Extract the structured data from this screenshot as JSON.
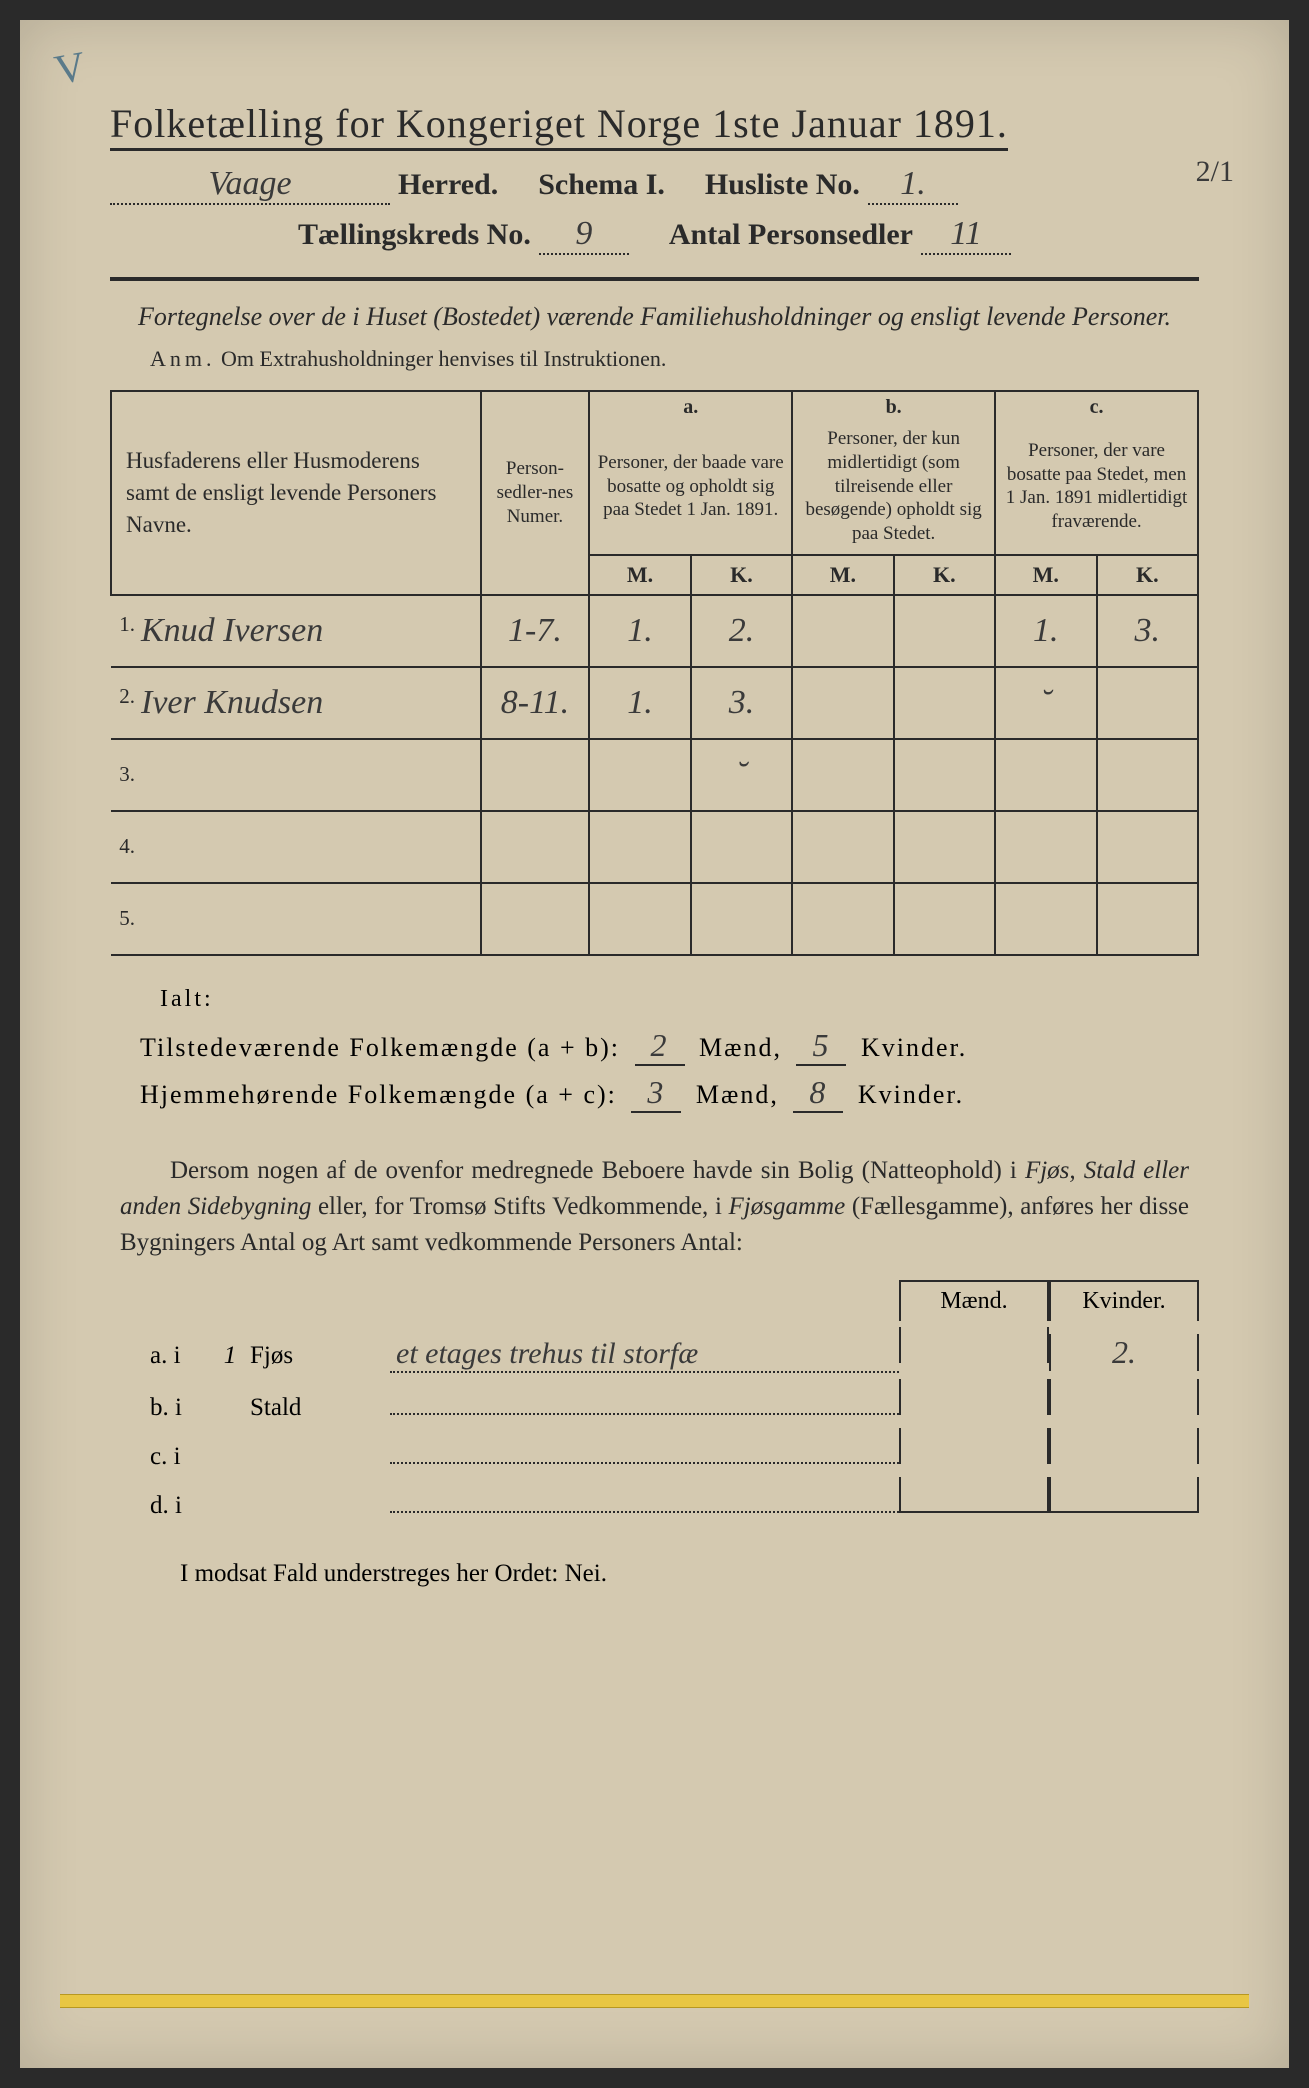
{
  "corner_mark": "V",
  "right_annotation": "2/1",
  "title": {
    "prefix": "Folketælling for Kongeriget Norge 1ste Januar",
    "year": "1891."
  },
  "line2": {
    "herred_value": "Vaage",
    "herred_label": "Herred.",
    "schema_label": "Schema I.",
    "husliste_label": "Husliste No.",
    "husliste_value": "1."
  },
  "line3": {
    "kreds_label": "Tællingskreds No.",
    "kreds_value": "9",
    "antal_label": "Antal Personsedler",
    "antal_value": "11"
  },
  "intro": "Fortegnelse over de i Huset (Bostedet) værende Familiehusholdninger og ensligt levende Personer.",
  "anm_label": "Anm.",
  "anm_text": "Om Extrahusholdninger henvises til Instruktionen.",
  "table": {
    "names_header": "Husfaderens eller Husmoderens samt de ensligt levende Personers Navne.",
    "numer_header": "Person-sedler-nes Numer.",
    "col_a_letter": "a.",
    "col_a_text": "Personer, der baade vare bosatte og opholdt sig paa Stedet 1 Jan. 1891.",
    "col_b_letter": "b.",
    "col_b_text": "Personer, der kun midlertidigt (som tilreisende eller besøgende) opholdt sig paa Stedet.",
    "col_c_letter": "c.",
    "col_c_text": "Personer, der vare bosatte paa Stedet, men 1 Jan. 1891 midlertidigt fraværende.",
    "mk_m": "M.",
    "mk_k": "K.",
    "rows": [
      {
        "n": "1.",
        "name": "Knud Iversen",
        "numer": "1-7.",
        "am": "1.",
        "ak": "2.",
        "bm": "",
        "bk": "",
        "cm": "1.",
        "ck": "3."
      },
      {
        "n": "2.",
        "name": "Iver Knudsen",
        "numer": "8-11.",
        "am": "1.",
        "ak": "3.",
        "bm": "",
        "bk": "",
        "cm": "˘",
        "ck": ""
      },
      {
        "n": "3.",
        "name": "",
        "numer": "",
        "am": "",
        "ak": "˘",
        "bm": "",
        "bk": "",
        "cm": "",
        "ck": ""
      },
      {
        "n": "4.",
        "name": "",
        "numer": "",
        "am": "",
        "ak": "",
        "bm": "",
        "bk": "",
        "cm": "",
        "ck": ""
      },
      {
        "n": "5.",
        "name": "",
        "numer": "",
        "am": "",
        "ak": "",
        "bm": "",
        "bk": "",
        "cm": "",
        "ck": ""
      }
    ]
  },
  "ialt_label": "Ialt:",
  "summary": {
    "line1_label": "Tilstedeværende Folkemængde (a + b):",
    "line1_m": "2",
    "line1_k": "5",
    "line2_label": "Hjemmehørende Folkemængde (a + c):",
    "line2_m": "3",
    "line2_k": "8",
    "maend": "Mænd,",
    "kvinder": "Kvinder."
  },
  "para": {
    "p1": "Dersom nogen af de ovenfor medregnede Beboere havde sin Bolig (Natteophold) i ",
    "i1": "Fjøs, Stald eller anden Sidebygning",
    "p2": " eller, for Tromsø Stifts Vedkommende, i ",
    "i2": "Fjøsgamme",
    "p3": " (Fællesgamme), anføres her disse Bygningers Antal og Art samt vedkommende Personers Antal:"
  },
  "mk_header_m": "Mænd.",
  "mk_header_k": "Kvinder.",
  "buildings": [
    {
      "label": "a. i",
      "count": "1",
      "type": "Fjøs",
      "note": "et etages trehus til storfæ",
      "m": "",
      "k": "2."
    },
    {
      "label": "b. i",
      "count": "",
      "type": "Stald",
      "note": "",
      "m": "",
      "k": ""
    },
    {
      "label": "c. i",
      "count": "",
      "type": "",
      "note": "",
      "m": "",
      "k": ""
    },
    {
      "label": "d. i",
      "count": "",
      "type": "",
      "note": "",
      "m": "",
      "k": ""
    }
  ],
  "final": "I modsat Fald understreges her Ordet: Nei.",
  "colors": {
    "paper": "#d4c9b0",
    "ink": "#2a2a2a",
    "handwriting": "#3a3a3a",
    "corner": "#5a7a8a",
    "yellow": "#e8c643"
  }
}
